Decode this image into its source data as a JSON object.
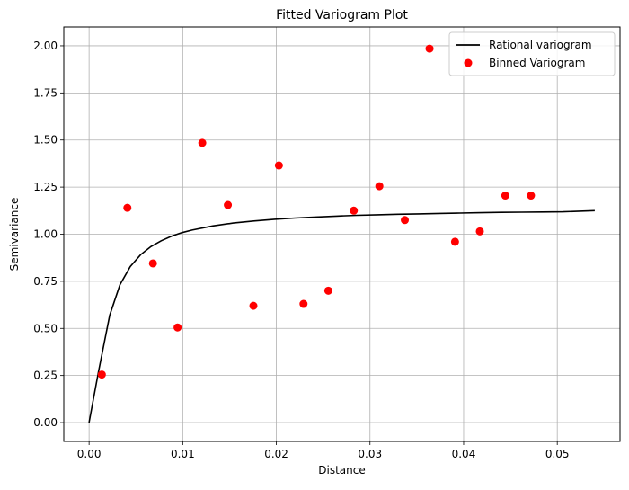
{
  "chart_data": {
    "type": "scatter",
    "title": "Fitted Variogram Plot",
    "xlabel": "Distance",
    "ylabel": "Semivariance",
    "xlim": [
      -0.0027,
      0.0567
    ],
    "ylim": [
      -0.1,
      2.1
    ],
    "xticks": [
      0.0,
      0.01,
      0.02,
      0.03,
      0.04,
      0.05
    ],
    "xtick_labels": [
      "0.00",
      "0.01",
      "0.02",
      "0.03",
      "0.04",
      "0.05"
    ],
    "yticks": [
      0.0,
      0.25,
      0.5,
      0.75,
      1.0,
      1.25,
      1.5,
      1.75,
      2.0
    ],
    "ytick_labels": [
      "0.00",
      "0.25",
      "0.50",
      "0.75",
      "1.00",
      "1.25",
      "1.50",
      "1.75",
      "2.00"
    ],
    "grid": true,
    "legend_position": "top-right",
    "series": [
      {
        "name": "Rational variogram",
        "kind": "line",
        "color": "#000000",
        "x": [
          0.0,
          0.001,
          0.0022,
          0.0033,
          0.0044,
          0.0055,
          0.0066,
          0.0077,
          0.0088,
          0.0099,
          0.011,
          0.0132,
          0.0154,
          0.0176,
          0.0198,
          0.022,
          0.0242,
          0.0264,
          0.0286,
          0.0308,
          0.033,
          0.0352,
          0.0374,
          0.0396,
          0.0418,
          0.044,
          0.0462,
          0.0484,
          0.0506,
          0.054
        ],
        "y": [
          0.0,
          0.27,
          0.57,
          0.732,
          0.828,
          0.891,
          0.934,
          0.965,
          0.989,
          1.008,
          1.022,
          1.044,
          1.059,
          1.07,
          1.079,
          1.086,
          1.091,
          1.096,
          1.1,
          1.103,
          1.106,
          1.108,
          1.11,
          1.112,
          1.114,
          1.116,
          1.117,
          1.118,
          1.119,
          1.125
        ]
      },
      {
        "name": "Binned Variogram",
        "kind": "scatter",
        "color": "#ff0000",
        "x": [
          0.00136,
          0.00409,
          0.00682,
          0.00945,
          0.01209,
          0.01482,
          0.01755,
          0.02027,
          0.0229,
          0.02555,
          0.02827,
          0.031,
          0.03372,
          0.03636,
          0.03908,
          0.04173,
          0.04445,
          0.04719
        ],
        "y": [
          0.255,
          1.14,
          0.845,
          0.505,
          1.485,
          1.155,
          0.62,
          1.365,
          0.63,
          0.7,
          1.125,
          1.255,
          1.075,
          1.985,
          0.96,
          1.015,
          1.205,
          1.205
        ]
      }
    ]
  }
}
